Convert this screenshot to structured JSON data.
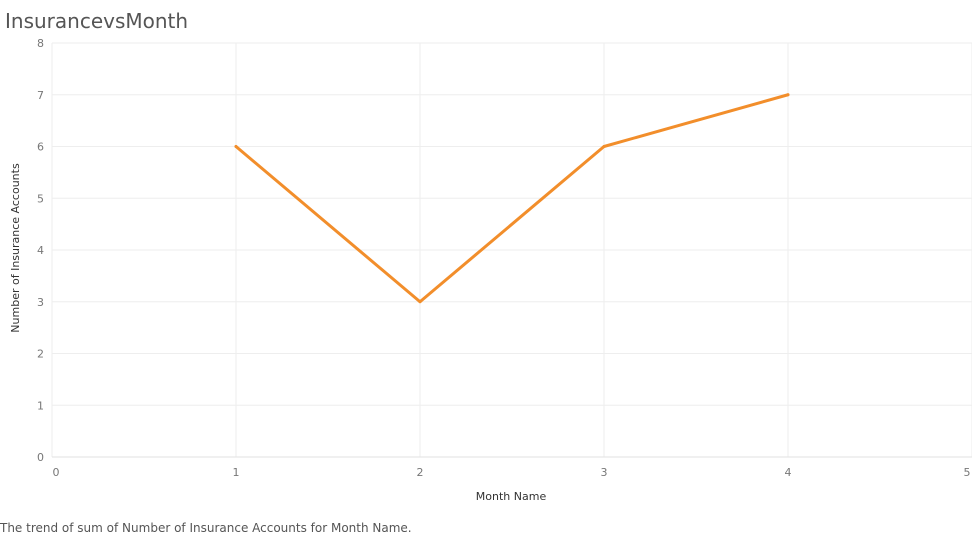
{
  "chart_data": {
    "type": "line",
    "title": "InsurancevsMonth",
    "xlabel": "Month Name",
    "ylabel": "Number of Insurance Accounts",
    "x": [
      1,
      2,
      3,
      4
    ],
    "series": [
      {
        "values": [
          6,
          3,
          6,
          7
        ]
      }
    ],
    "xlim": [
      0,
      5
    ],
    "ylim": [
      0,
      8
    ],
    "xticks": [
      "0",
      "1",
      "2",
      "3",
      "4",
      "5"
    ],
    "yticks": [
      "0",
      "1",
      "2",
      "3",
      "4",
      "5",
      "6",
      "7",
      "8"
    ],
    "grid": true,
    "line_color": "#F28E2B",
    "grid_color": "#EEEEEE"
  },
  "caption": "The trend of sum of Number of Insurance Accounts for Month Name."
}
